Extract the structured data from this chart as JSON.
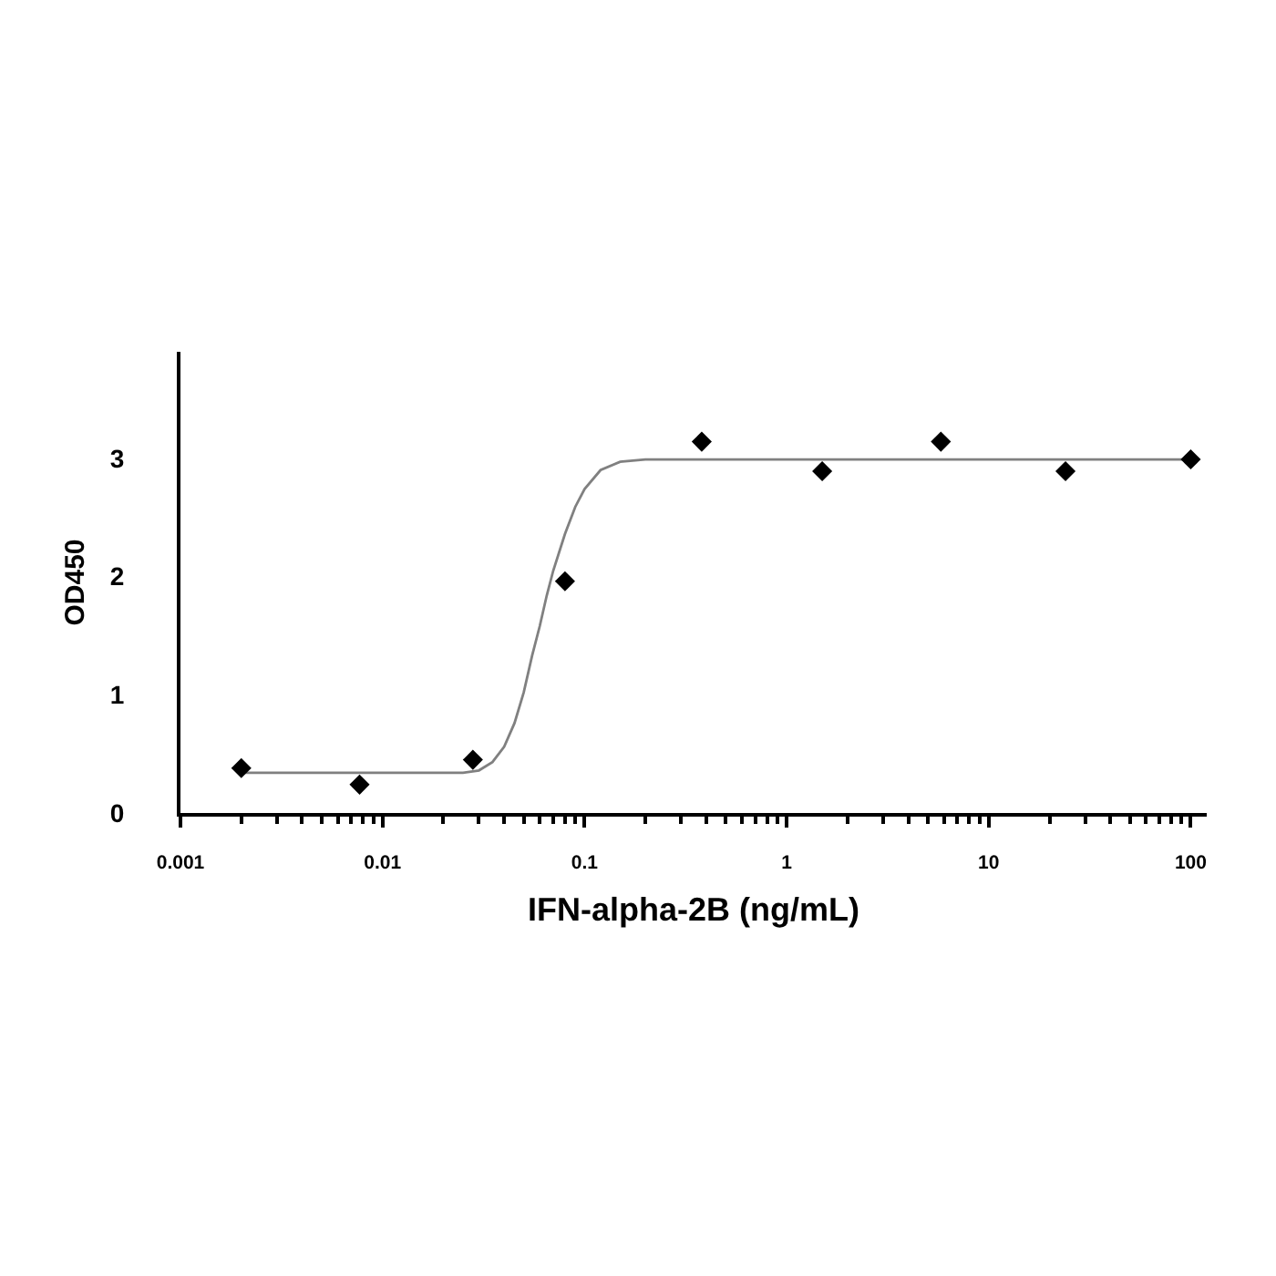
{
  "chart_data": {
    "type": "scatter",
    "xlabel": "IFN-alpha-2B (ng/mL)",
    "ylabel": "OD450",
    "log": "x",
    "xlim": [
      0.001,
      120
    ],
    "ylim": [
      0,
      3.9
    ],
    "xticks": [
      0.001,
      {
        "value": 0.002,
        "label": null
      },
      {
        "value": 0.003,
        "label": null
      },
      {
        "value": 0.004,
        "label": null
      },
      {
        "value": 0.005,
        "label": null
      },
      {
        "value": 0.006,
        "label": null
      },
      {
        "value": 0.007,
        "label": null
      },
      {
        "value": 0.008,
        "label": null
      },
      {
        "value": 0.009,
        "label": null
      },
      0.01,
      {
        "value": 0.02,
        "label": null
      },
      {
        "value": 0.03,
        "label": null
      },
      {
        "value": 0.04,
        "label": null
      },
      {
        "value": 0.05,
        "label": null
      },
      {
        "value": 0.06,
        "label": null
      },
      {
        "value": 0.07,
        "label": null
      },
      {
        "value": 0.08,
        "label": null
      },
      {
        "value": 0.09,
        "label": null
      },
      0.1,
      {
        "value": 0.2,
        "label": null
      },
      {
        "value": 0.3,
        "label": null
      },
      {
        "value": 0.4,
        "label": null
      },
      {
        "value": 0.5,
        "label": null
      },
      {
        "value": 0.6,
        "label": null
      },
      {
        "value": 0.7,
        "label": null
      },
      {
        "value": 0.8,
        "label": null
      },
      {
        "value": 0.9,
        "label": null
      },
      1,
      {
        "value": 2,
        "label": null
      },
      {
        "value": 3,
        "label": null
      },
      {
        "value": 4,
        "label": null
      },
      {
        "value": 5,
        "label": null
      },
      {
        "value": 6,
        "label": null
      },
      {
        "value": 7,
        "label": null
      },
      {
        "value": 8,
        "label": null
      },
      {
        "value": 9,
        "label": null
      },
      10,
      {
        "value": 20,
        "label": null
      },
      {
        "value": 30,
        "label": null
      },
      {
        "value": 40,
        "label": null
      },
      {
        "value": 50,
        "label": null
      },
      {
        "value": 60,
        "label": null
      },
      {
        "value": 70,
        "label": null
      },
      {
        "value": 80,
        "label": null
      },
      {
        "value": 90,
        "label": null
      },
      100
    ],
    "yticks": [
      0,
      1,
      2,
      3
    ],
    "series": [
      {
        "type": "line",
        "color": "#808080",
        "marker": "none",
        "line_style": "solid",
        "x": [
          0.002,
          0.025,
          0.03,
          0.035,
          0.04,
          0.045,
          0.05,
          0.055,
          0.06,
          0.065,
          0.07,
          0.08,
          0.09,
          0.1,
          0.12,
          0.15,
          0.2,
          100
        ],
        "values": [
          0.34,
          0.34,
          0.36,
          0.43,
          0.56,
          0.76,
          1.02,
          1.33,
          1.58,
          1.84,
          2.05,
          2.36,
          2.59,
          2.74,
          2.9,
          2.97,
          2.99,
          2.99
        ]
      },
      {
        "color": "#000000",
        "marker": "diamond",
        "x": [
          0.002,
          0.0077,
          0.028,
          0.08,
          0.38,
          1.5,
          5.8,
          24,
          100
        ],
        "values": [
          0.38,
          0.24,
          0.45,
          1.96,
          3.14,
          2.89,
          3.14,
          2.89,
          2.99
        ]
      }
    ]
  }
}
